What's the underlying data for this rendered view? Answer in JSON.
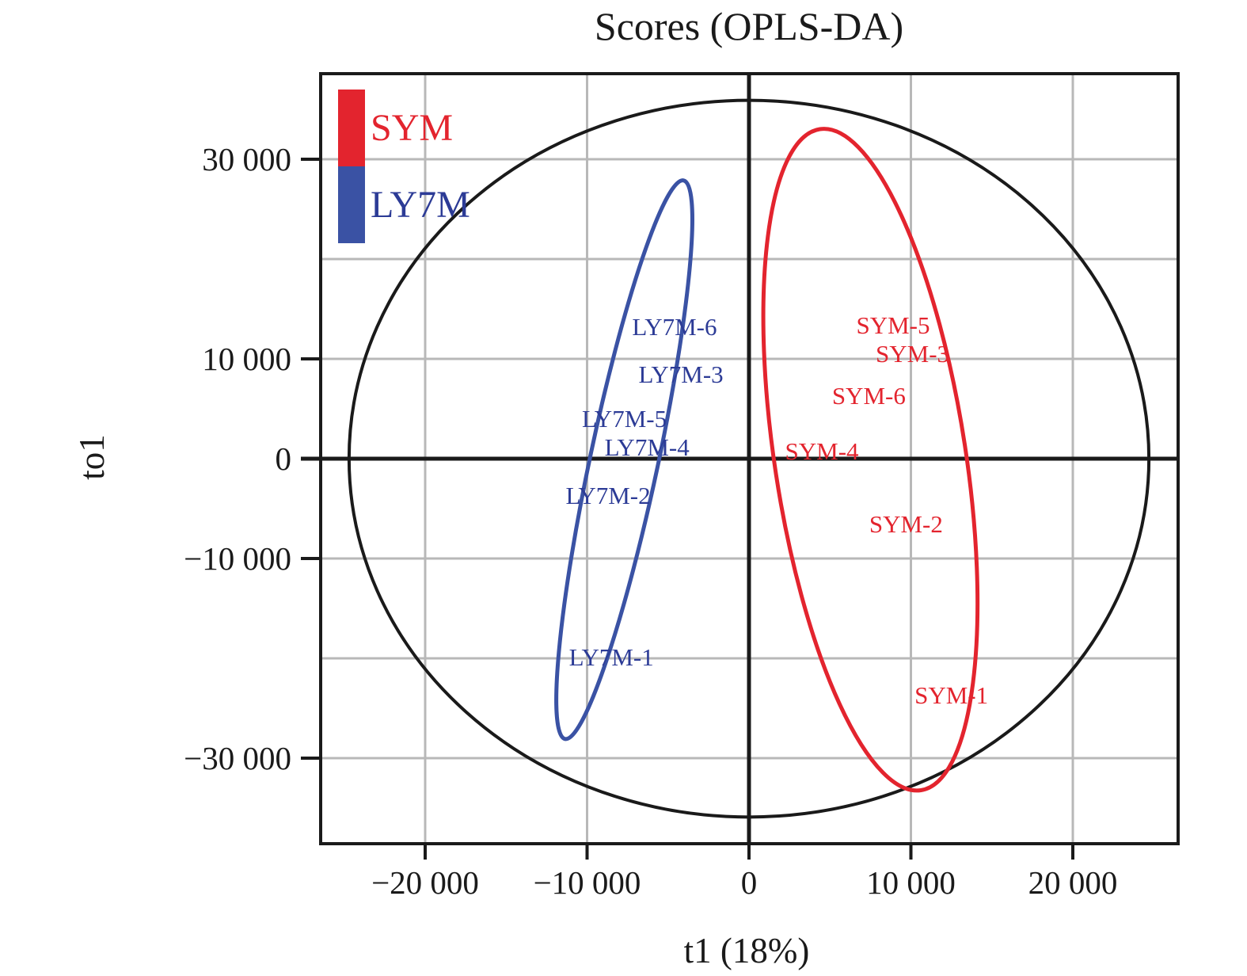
{
  "title": "Scores (OPLS-DA)",
  "colors": {
    "sym_red": "#e3242e",
    "ly7m_blue": "#3a52a4",
    "ly7m_text": "#2c3b96",
    "axis_black": "#1a1a1a",
    "grid_gray": "#b8b8b8"
  },
  "legend": {
    "items": [
      {
        "label": "SYM",
        "color": "#e3242e"
      },
      {
        "label": "LY7M",
        "color": "#3a52a4"
      }
    ]
  },
  "chart_data": {
    "type": "scatter",
    "title": "Scores (OPLS-DA)",
    "xlabel": "t1 (18%)",
    "ylabel": "to1",
    "xlim": [
      -26500,
      26500
    ],
    "ylim": [
      -38600,
      38600
    ],
    "grid": true,
    "legend_position": "top-left-inside",
    "xticks": [
      {
        "v": -20000,
        "label": "−20 000"
      },
      {
        "v": -10000,
        "label": "−10 000"
      },
      {
        "v": 0,
        "label": "0"
      },
      {
        "v": 10000,
        "label": "10 000"
      },
      {
        "v": 20000,
        "label": "20 000"
      }
    ],
    "yticks": [
      {
        "v": 30000,
        "label": "30 000"
      },
      {
        "v": 10000,
        "label": "10 000"
      },
      {
        "v": 0,
        "label": "0"
      },
      {
        "v": -10000,
        "label": "−10 000"
      },
      {
        "v": -30000,
        "label": "−30 000"
      }
    ],
    "grid_x": [
      -20000,
      -10000,
      10000,
      20000
    ],
    "grid_y": [
      30000,
      20000,
      10000,
      -10000,
      -20000,
      -30000
    ],
    "series": [
      {
        "name": "SYM",
        "color": "#e3242e",
        "points": [
          {
            "label": "SYM-5",
            "x": 8900,
            "y": 13300
          },
          {
            "label": "SYM-3",
            "x": 10100,
            "y": 10500
          },
          {
            "label": "SYM-6",
            "x": 7400,
            "y": 6300
          },
          {
            "label": "SYM-4",
            "x": 4500,
            "y": 700
          },
          {
            "label": "SYM-2",
            "x": 9700,
            "y": -6600
          },
          {
            "label": "SYM-1",
            "x": 12500,
            "y": -23700
          }
        ]
      },
      {
        "name": "LY7M",
        "color": "#2c3b96",
        "points": [
          {
            "label": "LY7M-6",
            "x": -4600,
            "y": 13200
          },
          {
            "label": "LY7M-3",
            "x": -4200,
            "y": 8400
          },
          {
            "label": "LY7M-5",
            "x": -7700,
            "y": 4000
          },
          {
            "label": "LY7M-4",
            "x": -6300,
            "y": 1100
          },
          {
            "label": "LY7M-2",
            "x": -8700,
            "y": -3700
          },
          {
            "label": "LY7M-1",
            "x": -8500,
            "y": -19900
          }
        ]
      }
    ],
    "ellipses": [
      {
        "name": "hotelling-t2-ellipse",
        "cx": 0,
        "cy": 0,
        "rx": 24700,
        "ry": 35900,
        "rotation_deg": 0,
        "color": "#1a1a1a",
        "stroke_px": 4
      },
      {
        "name": "ly7m-group-ellipse",
        "cx": -7700,
        "cy": -100,
        "rx": 2100,
        "ry": 28600,
        "rotation_deg": 12,
        "color": "#3a52a4",
        "stroke_px": 5
      },
      {
        "name": "sym-group-ellipse",
        "cx": 7500,
        "cy": -100,
        "rx": 5900,
        "ry": 33500,
        "rotation_deg": -8.7,
        "color": "#e3242e",
        "stroke_px": 5
      }
    ]
  }
}
